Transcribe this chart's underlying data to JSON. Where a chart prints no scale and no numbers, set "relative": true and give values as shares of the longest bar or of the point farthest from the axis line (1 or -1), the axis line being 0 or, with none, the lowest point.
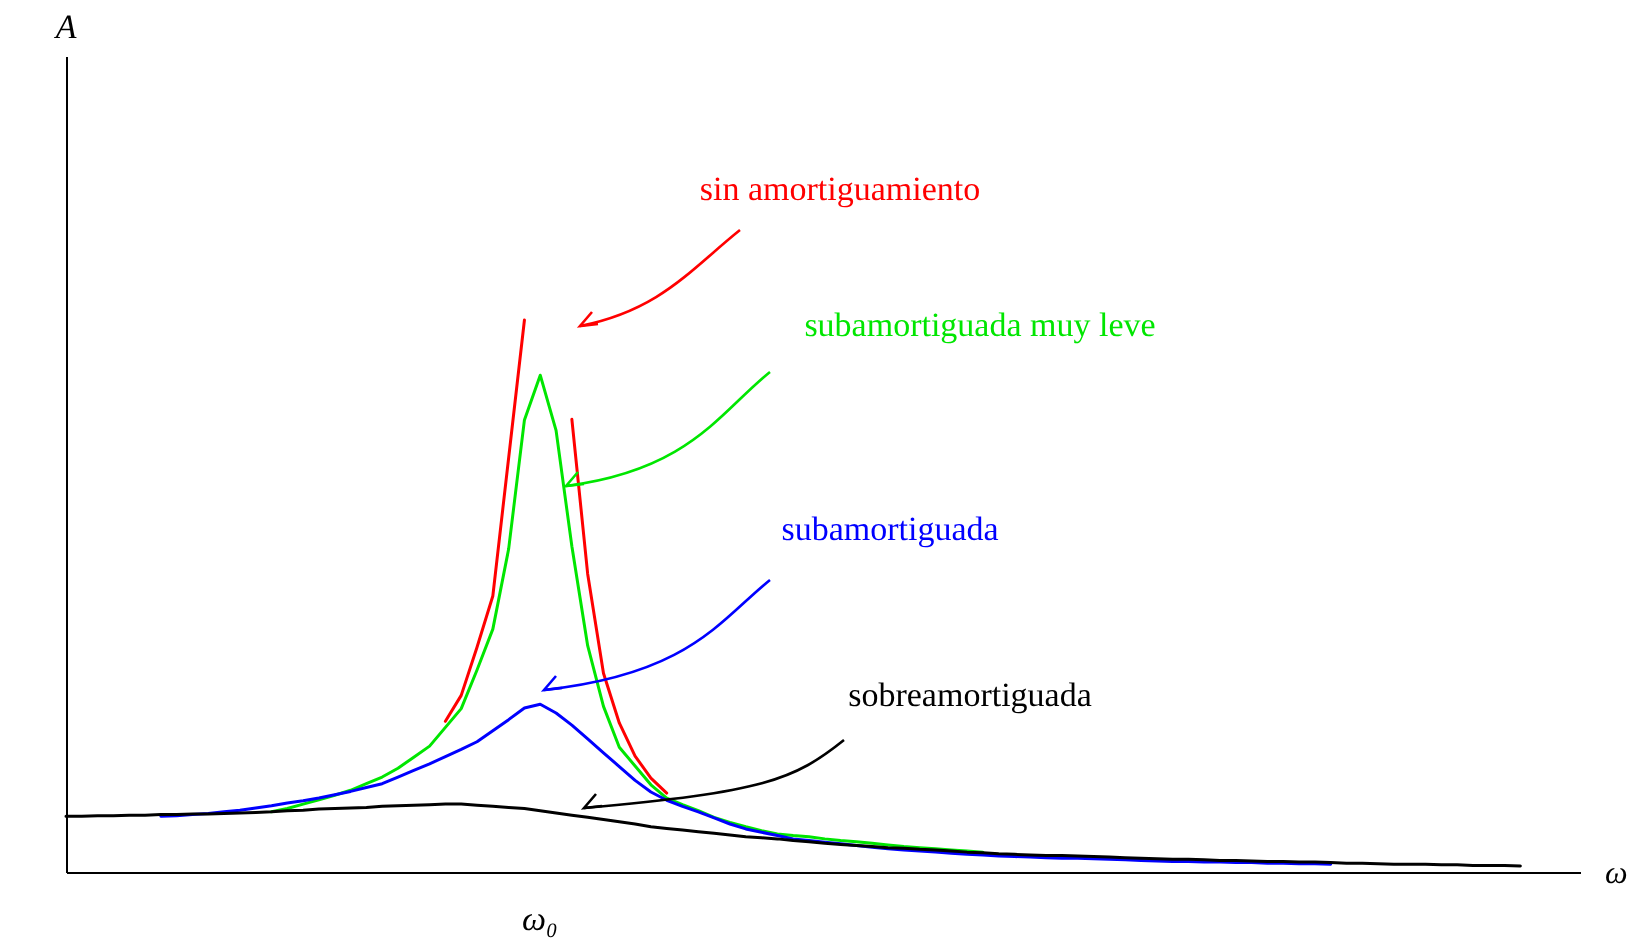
{
  "chart_data": {
    "type": "line",
    "relative": true,
    "xlabel": "ω",
    "marker": "none",
    "line_style": "solid",
    "categories": [
      null,
      null,
      null,
      null,
      null,
      null,
      null,
      null,
      null,
      null,
      null,
      null,
      null,
      null,
      null,
      null,
      null,
      null,
      null,
      null,
      null,
      null,
      null,
      null,
      null,
      null,
      null,
      null,
      null,
      null,
      null,
      null,
      null,
      null,
      null,
      null,
      null,
      null,
      null,
      null,
      null,
      null,
      null,
      null,
      null,
      null,
      null,
      null,
      null,
      null,
      null,
      null,
      null,
      null,
      null,
      null,
      null,
      null,
      null,
      null,
      null,
      null,
      null,
      null,
      null,
      null,
      null,
      null,
      null,
      null,
      null,
      null,
      null,
      null,
      null,
      null,
      null,
      null,
      null,
      null,
      null,
      null,
      null,
      null,
      null,
      null,
      null,
      null,
      null,
      null,
      null,
      null,
      null
    ],
    "series": [
      {
        "color": "#ff0000",
        "values": [
          null,
          null,
          null,
          null,
          null,
          null,
          null,
          null,
          null,
          null,
          null,
          null,
          null,
          null,
          null,
          null,
          null,
          null,
          null,
          null,
          null,
          null,
          null,
          null,
          0.273,
          0.32,
          0.407,
          0.5,
          0.75,
          1,
          null,
          null,
          0.82,
          0.54,
          0.36,
          0.27,
          0.21,
          0.17,
          0.143,
          null,
          null,
          null,
          null,
          null,
          null,
          null,
          null,
          null,
          null,
          null,
          null,
          null,
          null,
          null,
          null,
          null,
          null,
          null,
          null,
          null,
          null,
          null,
          null,
          null,
          null,
          null,
          null,
          null,
          null,
          null,
          null,
          null,
          null,
          null,
          null,
          null,
          null,
          null,
          null,
          null,
          null,
          null,
          null,
          null,
          null,
          null,
          null,
          null,
          null,
          null,
          null,
          null,
          null
        ]
      },
      {
        "color": "#00e600",
        "values": [
          null,
          null,
          null,
          null,
          null,
          null,
          null,
          null,
          null,
          null,
          null,
          null,
          null,
          0.109,
          0.115,
          0.123,
          0.131,
          0.139,
          0.148,
          0.16,
          0.172,
          0.188,
          0.208,
          0.228,
          0.262,
          0.296,
          0.366,
          0.44,
          0.585,
          0.819,
          0.9,
          0.8,
          0.59,
          0.41,
          0.3,
          0.226,
          0.192,
          0.158,
          0.134,
          0.122,
          0.111,
          0.099,
          0.09,
          0.082,
          0.075,
          0.069,
          0.066,
          0.064,
          0.06,
          0.057,
          0.055,
          0.052,
          0.049,
          0.046,
          0.044,
          0.042,
          0.04,
          0.038,
          0.036,
          null,
          null,
          null,
          null,
          null,
          null,
          null,
          null,
          null,
          null,
          null,
          null,
          null,
          null,
          null,
          null,
          null,
          null,
          null,
          null,
          null,
          null,
          null,
          null,
          null,
          null,
          null,
          null,
          null,
          null,
          null,
          null,
          null,
          null
        ]
      },
      {
        "color": "#0000ff",
        "values": [
          null,
          null,
          null,
          null,
          null,
          null,
          0.101,
          0.102,
          0.104,
          0.106,
          0.109,
          0.112,
          0.116,
          0.12,
          0.125,
          0.129,
          0.134,
          0.14,
          0.146,
          0.153,
          0.16,
          0.172,
          0.184,
          0.196,
          0.209,
          0.222,
          0.236,
          0.256,
          0.276,
          0.297,
          0.304,
          0.288,
          0.266,
          0.241,
          0.216,
          0.191,
          0.166,
          0.145,
          0.13,
          0.119,
          0.109,
          0.098,
          0.087,
          0.078,
          0.072,
          0.066,
          0.06,
          0.057,
          0.054,
          0.051,
          0.048,
          0.045,
          0.042,
          0.04,
          0.038,
          0.036,
          0.034,
          0.032,
          0.031,
          0.029,
          0.028,
          0.027,
          0.026,
          0.025,
          0.025,
          0.024,
          0.023,
          0.022,
          0.021,
          0.02,
          0.019,
          0.019,
          0.018,
          0.018,
          0.017,
          0.017,
          0.016,
          0.016,
          0.015,
          0.015,
          0.014,
          null,
          null,
          null,
          null,
          null,
          null,
          null,
          null,
          null,
          null,
          null,
          null
        ]
      },
      {
        "color": "#000000",
        "values": [
          0.101,
          0.101,
          0.102,
          0.102,
          0.103,
          0.103,
          0.104,
          0.104,
          0.105,
          0.105,
          0.106,
          0.107,
          0.108,
          0.109,
          0.111,
          0.112,
          0.114,
          0.115,
          0.116,
          0.117,
          0.119,
          0.12,
          0.121,
          0.122,
          0.123,
          0.123,
          0.121,
          0.119,
          0.117,
          0.115,
          0.111,
          0.107,
          0.103,
          0.099,
          0.095,
          0.091,
          0.087,
          0.082,
          0.079,
          0.076,
          0.073,
          0.07,
          0.067,
          0.064,
          0.062,
          0.06,
          0.057,
          0.055,
          0.052,
          0.05,
          0.048,
          0.046,
          0.044,
          0.043,
          0.041,
          0.04,
          0.038,
          0.036,
          0.035,
          0.033,
          0.032,
          0.031,
          0.03,
          0.03,
          0.029,
          0.028,
          0.027,
          0.026,
          0.025,
          0.024,
          0.023,
          0.023,
          0.022,
          0.021,
          0.021,
          0.02,
          0.019,
          0.019,
          0.018,
          0.018,
          0.017,
          0.016,
          0.016,
          0.015,
          0.014,
          0.014,
          0.014,
          0.013,
          0.013,
          0.012,
          0.012,
          0.012,
          0.011
        ]
      }
    ],
    "annotations": [
      "sin amortiguamiento",
      "subamortiguada muy leve",
      "subamortiguada",
      "sobreamortiguada",
      "ω₀",
      "A"
    ]
  }
}
